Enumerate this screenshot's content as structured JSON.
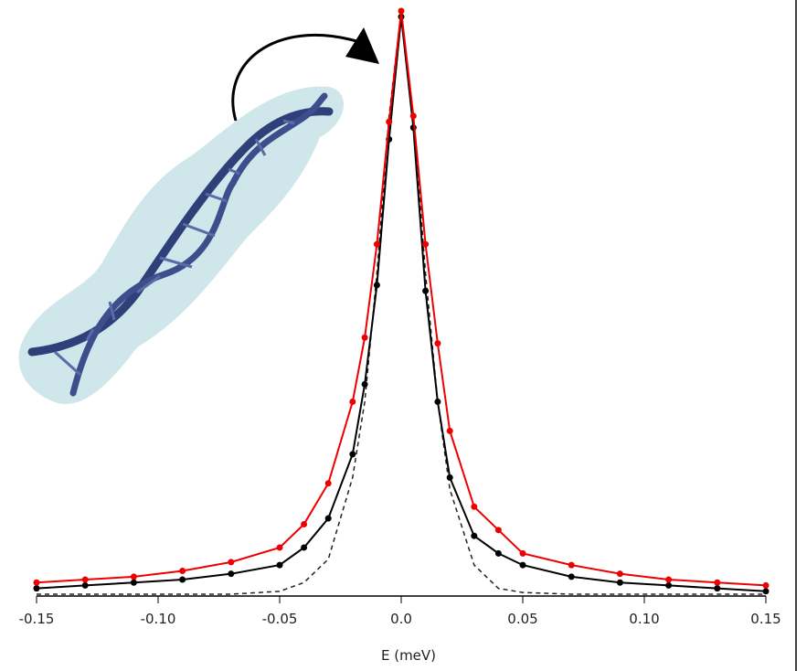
{
  "chart_data": {
    "type": "line",
    "x_label": "E (meV)",
    "x": [
      -0.15,
      -0.13,
      -0.11,
      -0.09,
      -0.07,
      -0.05,
      -0.04,
      -0.03,
      -0.02,
      -0.015,
      -0.01,
      -0.005,
      0,
      0.005,
      0.01,
      0.015,
      0.02,
      0.03,
      0.04,
      0.05,
      0.07,
      0.09,
      0.11,
      0.13,
      0.15
    ],
    "xlim": [
      -0.15,
      0.15
    ],
    "xticks": [
      -0.15,
      {
        "value": -0.1,
        "label": "-0.10"
      },
      -0.05,
      {
        "value": 0,
        "label": "0.0"
      },
      0.05,
      {
        "value": 0.1,
        "label": "0.10"
      },
      0.15
    ],
    "ylim": [
      0,
      1
    ],
    "series": [
      {
        "color": "#222222",
        "dashed": true,
        "markers": false,
        "values": [
          0,
          0,
          0,
          0,
          0,
          0.005,
          0.02,
          0.06,
          0.2,
          0.33,
          0.55,
          0.82,
          1.0,
          0.82,
          0.55,
          0.33,
          0.18,
          0.05,
          0.01,
          0.003,
          0,
          0,
          0,
          0,
          0
        ]
      },
      {
        "color": "#000000",
        "dashed": false,
        "markers": true,
        "values": [
          0.01,
          0.015,
          0.02,
          0.025,
          0.035,
          0.05,
          0.08,
          0.13,
          0.24,
          0.36,
          0.53,
          0.78,
          0.99,
          0.8,
          0.52,
          0.33,
          0.2,
          0.1,
          0.07,
          0.05,
          0.03,
          0.02,
          0.015,
          0.01,
          0.005
        ]
      },
      {
        "color": "#ee0000",
        "dashed": false,
        "markers": true,
        "values": [
          0.02,
          0.025,
          0.03,
          0.04,
          0.055,
          0.08,
          0.12,
          0.19,
          0.33,
          0.44,
          0.6,
          0.81,
          1.0,
          0.82,
          0.6,
          0.43,
          0.28,
          0.15,
          0.11,
          0.07,
          0.05,
          0.035,
          0.025,
          0.02,
          0.015
        ]
      }
    ]
  }
}
